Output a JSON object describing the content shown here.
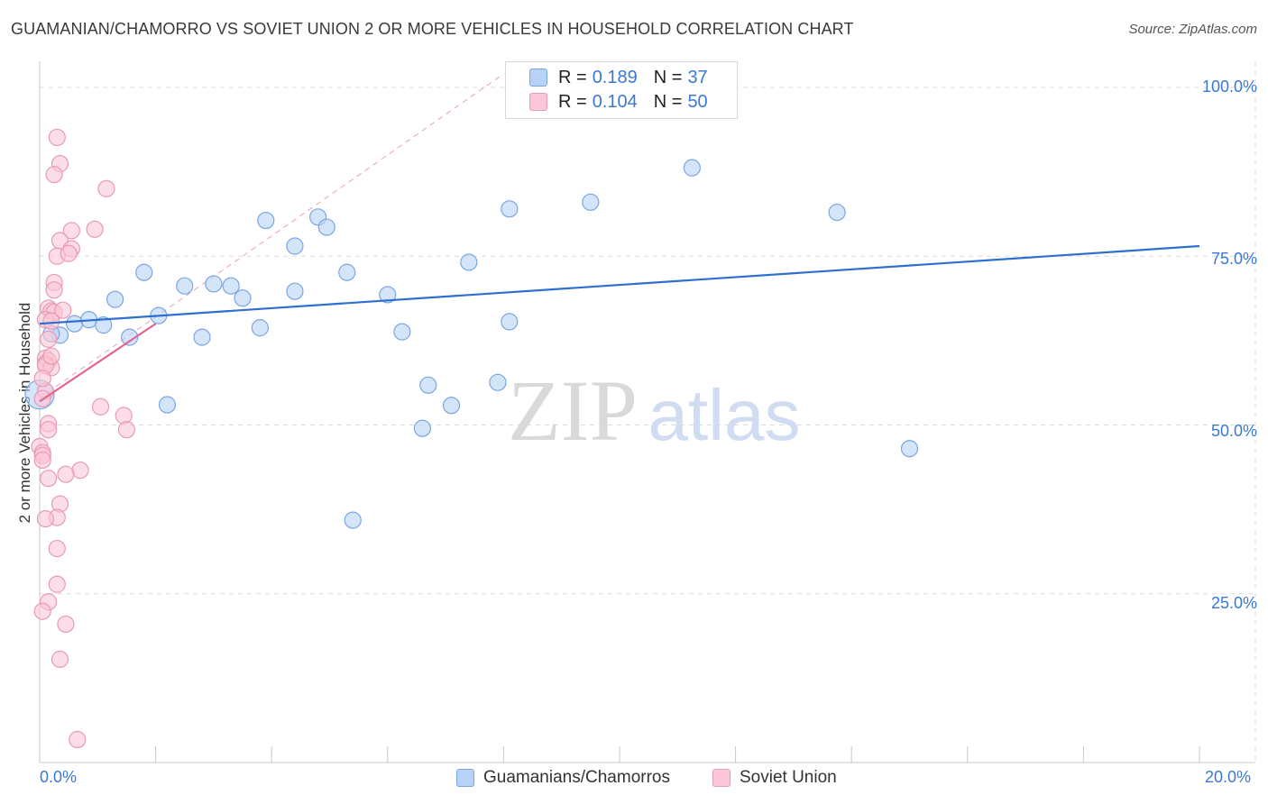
{
  "title": "GUAMANIAN/CHAMORRO VS SOVIET UNION 2 OR MORE VEHICLES IN HOUSEHOLD CORRELATION CHART",
  "source": "Source: ZipAtlas.com",
  "watermark": {
    "zip": "ZIP",
    "atlas": "atlas"
  },
  "legend": {
    "r_label": "R =",
    "n_label": "N =",
    "series": [
      {
        "name": "Guamanians/Chamorros",
        "r": "0.189",
        "n": "37",
        "fill": "#b8d2f5",
        "stroke": "#7aa6e0"
      },
      {
        "name": "Soviet Union",
        "r": "0.104",
        "n": "50",
        "fill": "#fbc6d6",
        "stroke": "#e89ab4"
      }
    ]
  },
  "chart_data": {
    "type": "scatter",
    "title": "GUAMANIAN/CHAMORRO VS SOVIET UNION 2 OR MORE VEHICLES IN HOUSEHOLD CORRELATION CHART",
    "xlabel": "",
    "ylabel": "2 or more Vehicles in Household",
    "xlim": [
      0,
      20
    ],
    "ylim": [
      0,
      102
    ],
    "x_tick_labels": [
      "0.0%",
      "20.0%"
    ],
    "y_ticks": [
      25,
      50,
      75,
      100
    ],
    "y_tick_labels": [
      "25.0%",
      "50.0%",
      "75.0%",
      "100.0%"
    ],
    "grid": true,
    "series": [
      {
        "name": "Guamanians/Chamorros",
        "color": "#b8d2f5",
        "stroke": "#7aa6e0",
        "trend": {
          "x": [
            0,
            20
          ],
          "y": [
            65.0,
            76.5
          ],
          "color": "#2e6fd0"
        },
        "points": [
          [
            0.0,
            54.5
          ],
          [
            0.35,
            63.3
          ],
          [
            0.6,
            65.0
          ],
          [
            0.85,
            65.6
          ],
          [
            1.1,
            64.8
          ],
          [
            1.3,
            68.6
          ],
          [
            1.55,
            63.0
          ],
          [
            1.8,
            72.6
          ],
          [
            2.05,
            66.2
          ],
          [
            2.2,
            53.0
          ],
          [
            2.5,
            70.6
          ],
          [
            2.8,
            63.0
          ],
          [
            3.0,
            70.9
          ],
          [
            3.3,
            70.6
          ],
          [
            3.5,
            68.8
          ],
          [
            3.8,
            64.4
          ],
          [
            3.9,
            80.3
          ],
          [
            4.4,
            69.8
          ],
          [
            4.4,
            76.5
          ],
          [
            4.8,
            80.8
          ],
          [
            4.95,
            79.3
          ],
          [
            5.3,
            72.6
          ],
          [
            5.4,
            35.9
          ],
          [
            6.0,
            69.3
          ],
          [
            6.25,
            63.8
          ],
          [
            6.6,
            49.5
          ],
          [
            6.7,
            55.9
          ],
          [
            7.1,
            52.9
          ],
          [
            7.4,
            74.1
          ],
          [
            7.9,
            56.3
          ],
          [
            8.1,
            82.0
          ],
          [
            8.1,
            65.3
          ],
          [
            9.5,
            83.0
          ],
          [
            11.25,
            88.1
          ],
          [
            13.75,
            81.5
          ],
          [
            15.0,
            46.5
          ],
          [
            0.2,
            63.5
          ]
        ]
      },
      {
        "name": "Soviet Union",
        "color": "#fbc6d6",
        "stroke": "#e89ab4",
        "trend": {
          "x": [
            0,
            2.0
          ],
          "y": [
            53.5,
            65.0
          ],
          "color": "#e0688f"
        },
        "points": [
          [
            0.3,
            92.6
          ],
          [
            0.35,
            88.7
          ],
          [
            0.25,
            87.1
          ],
          [
            1.15,
            85.0
          ],
          [
            0.55,
            78.8
          ],
          [
            0.95,
            79.0
          ],
          [
            0.35,
            77.3
          ],
          [
            0.55,
            76.1
          ],
          [
            0.3,
            75.0
          ],
          [
            0.5,
            75.4
          ],
          [
            0.25,
            71.1
          ],
          [
            0.25,
            70.0
          ],
          [
            0.15,
            67.3
          ],
          [
            0.2,
            66.9
          ],
          [
            0.25,
            66.7
          ],
          [
            0.1,
            65.6
          ],
          [
            0.2,
            65.4
          ],
          [
            0.15,
            62.7
          ],
          [
            0.1,
            59.9
          ],
          [
            0.15,
            59.5
          ],
          [
            0.1,
            59.1
          ],
          [
            0.2,
            58.5
          ],
          [
            0.1,
            55.0
          ],
          [
            0.05,
            53.9
          ],
          [
            1.05,
            52.7
          ],
          [
            1.45,
            51.4
          ],
          [
            0.15,
            50.2
          ],
          [
            0.15,
            49.3
          ],
          [
            1.5,
            49.3
          ],
          [
            0.0,
            46.8
          ],
          [
            0.05,
            45.9
          ],
          [
            0.05,
            45.5
          ],
          [
            0.05,
            44.8
          ],
          [
            0.7,
            43.3
          ],
          [
            0.45,
            42.7
          ],
          [
            0.15,
            42.1
          ],
          [
            0.35,
            38.3
          ],
          [
            0.3,
            36.3
          ],
          [
            0.1,
            36.1
          ],
          [
            0.3,
            31.7
          ],
          [
            0.3,
            26.4
          ],
          [
            0.15,
            23.8
          ],
          [
            0.05,
            22.4
          ],
          [
            0.45,
            20.5
          ],
          [
            0.35,
            15.3
          ],
          [
            0.65,
            3.4
          ],
          [
            0.1,
            58.8
          ],
          [
            0.05,
            56.9
          ],
          [
            0.4,
            67.0
          ],
          [
            0.2,
            60.2
          ]
        ]
      }
    ]
  }
}
